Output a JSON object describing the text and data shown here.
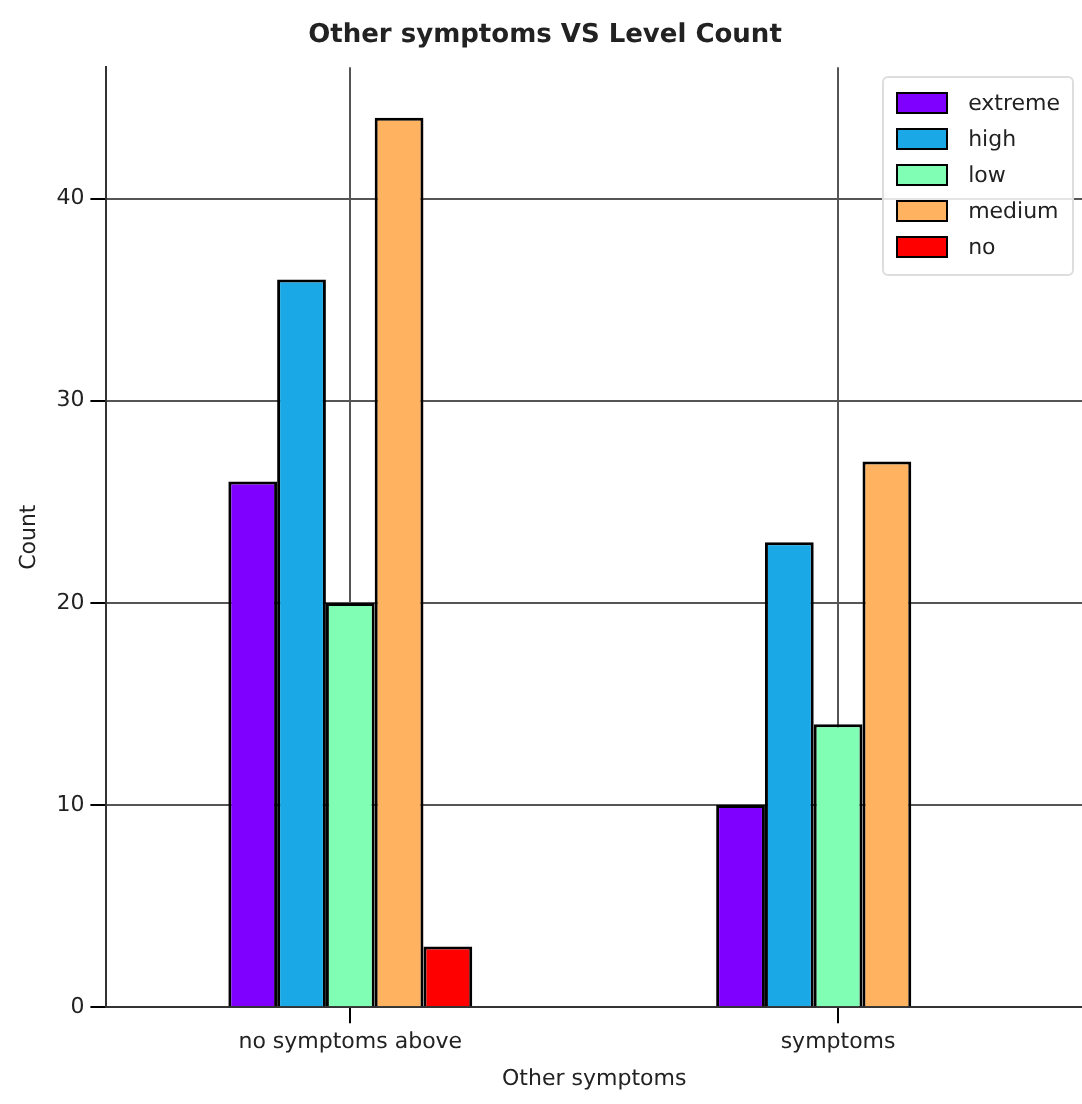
{
  "chart_data": {
    "type": "bar",
    "title": "Other symptoms VS Level Count",
    "xlabel": "Other symptoms",
    "ylabel": "Count",
    "categories": [
      "no symptoms above",
      "symptoms"
    ],
    "series": [
      {
        "name": "extreme",
        "color": "#7f00ff",
        "values": [
          26,
          10
        ]
      },
      {
        "name": "high",
        "color": "#1aa8e6",
        "values": [
          36,
          23
        ]
      },
      {
        "name": "low",
        "color": "#80ffb4",
        "values": [
          20,
          14
        ]
      },
      {
        "name": "medium",
        "color": "#ffb360",
        "values": [
          44,
          27
        ]
      },
      {
        "name": "no",
        "color": "#ff0000",
        "values": [
          3,
          0
        ]
      }
    ],
    "ylim": [
      0,
      46.5
    ],
    "yticks": [
      0,
      10,
      20,
      30,
      40
    ],
    "grid": true,
    "legend": "top right"
  }
}
